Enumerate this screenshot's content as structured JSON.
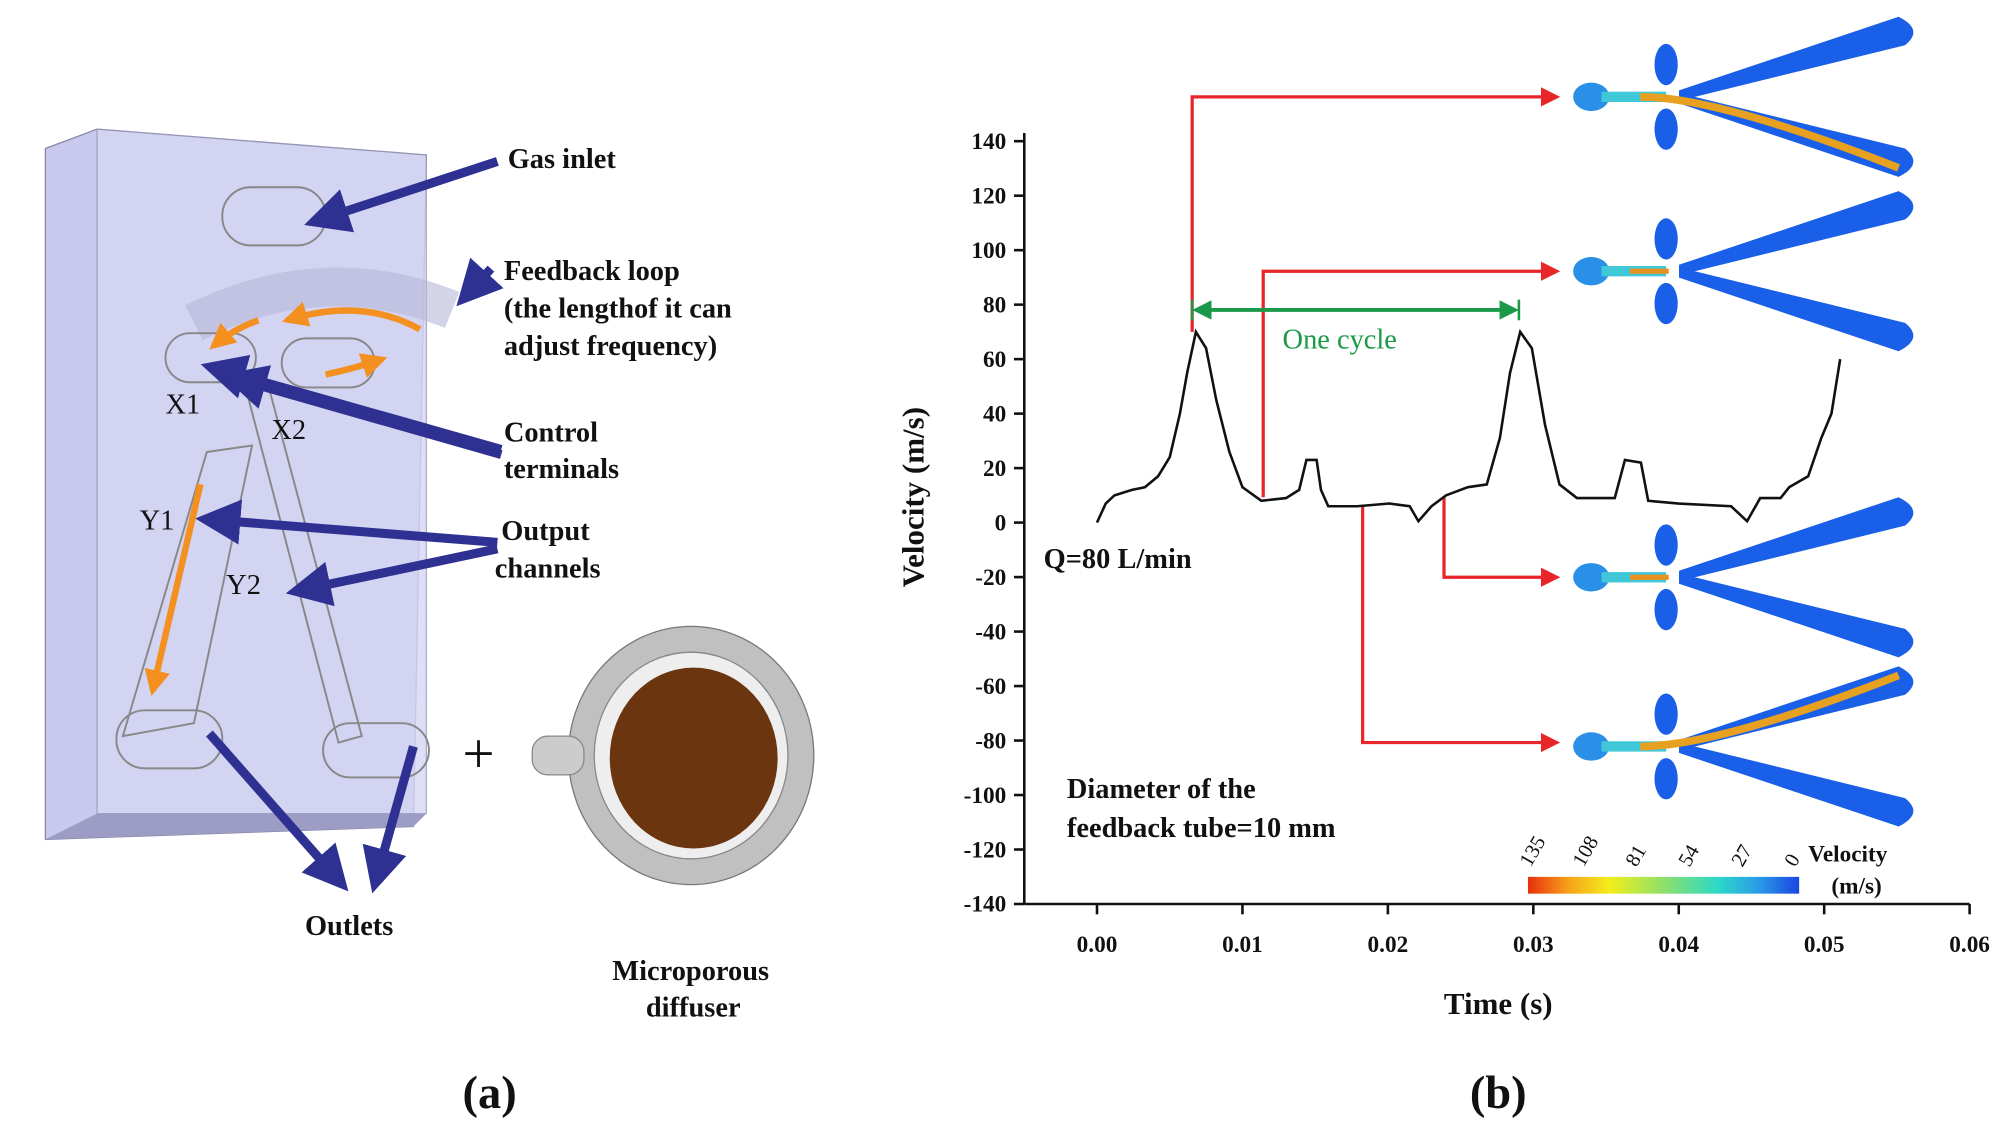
{
  "panel_a": {
    "gas_inlet": "Gas inlet",
    "feedback_loop": [
      "Feedback loop",
      "(the lengthof it can",
      "adjust frequency)"
    ],
    "x1": "X1",
    "x2": "X2",
    "control_terminals": [
      "Control",
      "terminals"
    ],
    "y1": "Y1",
    "y2": "Y2",
    "output_channels": [
      "Output",
      "channels"
    ],
    "outlets": "Outlets",
    "plus": "+",
    "diffuser": [
      "Microporous",
      "diffuser"
    ],
    "caption": "(a)"
  },
  "chart_data": {
    "type": "line",
    "caption": "(b)",
    "x_label": "Time (s)",
    "y_label": "Velocity (m/s)",
    "x": [
      0,
      0.0006,
      0.0012,
      0.0024,
      0.0033,
      0.0042,
      0.005,
      0.0057,
      0.0062,
      0.0068,
      0.0075,
      0.0082,
      0.0091,
      0.01,
      0.0113,
      0.013,
      0.0139,
      0.0144,
      0.0151,
      0.0154,
      0.0159,
      0.0179,
      0.0201,
      0.0215,
      0.0221,
      0.023,
      0.024,
      0.0255,
      0.0268,
      0.0277,
      0.0284,
      0.0291,
      0.0299,
      0.0308,
      0.0318,
      0.033,
      0.0356,
      0.0363,
      0.0374,
      0.0379,
      0.04,
      0.0436,
      0.0447,
      0.0456,
      0.047,
      0.0476,
      0.0489,
      0.0498,
      0.0505,
      0.0511
    ],
    "series": [
      {
        "color": "#111111",
        "values": [
          0,
          7,
          10,
          12,
          13,
          17,
          24,
          40,
          55,
          70,
          64,
          45,
          26,
          13,
          8,
          9,
          12,
          23,
          23,
          12,
          6,
          6,
          7,
          6,
          0.5,
          6,
          10,
          13,
          14,
          31,
          55,
          70,
          64,
          36,
          14,
          9,
          9,
          23,
          22,
          8,
          7,
          6,
          0.5,
          9,
          9,
          13,
          17,
          31,
          40,
          60
        ]
      }
    ],
    "xlim": [
      -0.005,
      0.06
    ],
    "xticks": [
      {
        "value": 0,
        "label": "0.00"
      },
      0.01,
      0.02,
      0.03,
      0.04,
      0.05,
      0.06
    ],
    "ylim": [
      -140,
      143
    ],
    "yticks": [
      -140,
      -120,
      -100,
      -80,
      -60,
      -40,
      -20,
      0,
      20,
      40,
      60,
      80,
      100,
      120,
      140
    ],
    "annotations": {
      "one_cycle": "One cycle",
      "flow": "Q=80 L/min",
      "diameter": [
        "Diameter of the",
        "feedback tube=10 mm"
      ]
    },
    "colorbar": {
      "ticks": [
        135,
        108,
        81,
        54,
        27,
        0
      ],
      "label": [
        "Velocity",
        "(m/s)"
      ]
    }
  }
}
